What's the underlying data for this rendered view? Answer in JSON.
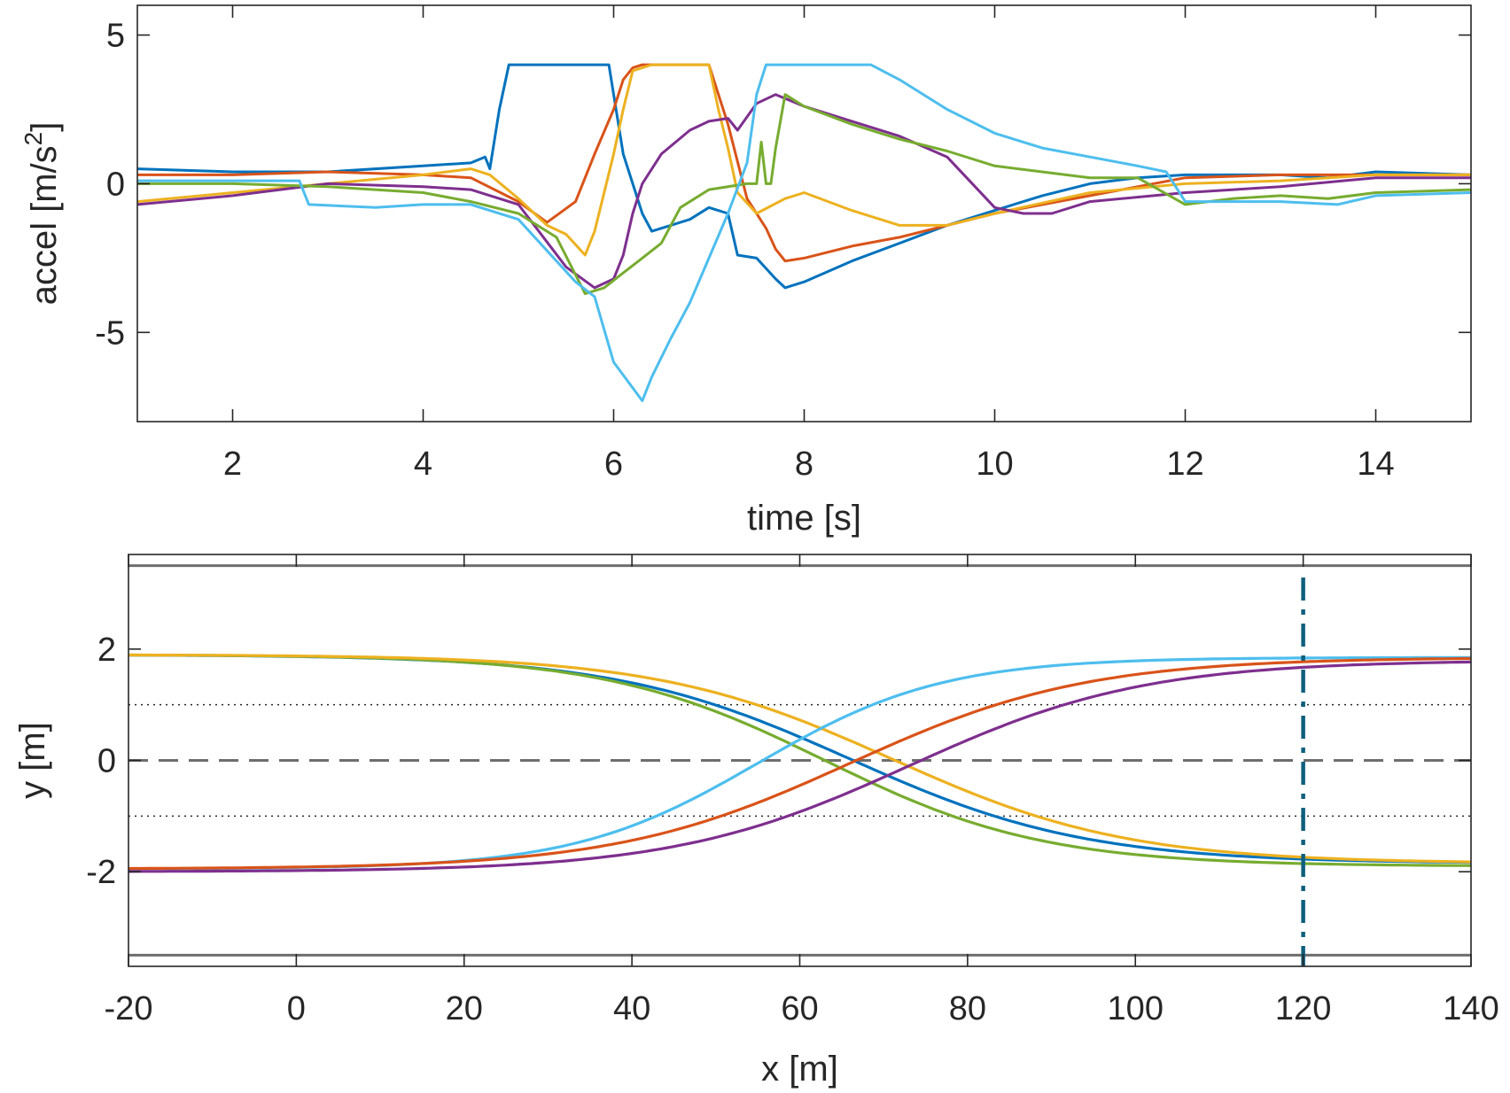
{
  "chart_data": [
    {
      "type": "line",
      "title": "",
      "xlabel": "time [s]",
      "ylabel": "accel [m/s",
      "ylabel_sup": "2",
      "ylabel_end": "]",
      "xlim": [
        1,
        15
      ],
      "ylim": [
        -8,
        6
      ],
      "xticks": [
        2,
        4,
        6,
        8,
        10,
        12,
        14
      ],
      "xtick_labels": [
        "2",
        "4",
        "6",
        "8",
        "10",
        "12",
        "14"
      ],
      "yticks": [
        -5,
        0,
        5
      ],
      "ytick_labels": [
        "-5",
        "0",
        "5"
      ],
      "series": [
        {
          "name": "blue",
          "color": "#0072BD",
          "x": [
            1,
            2,
            3,
            4,
            4.5,
            4.65,
            4.7,
            4.8,
            4.9,
            5.5,
            5.95,
            6.1,
            6.3,
            6.4,
            6.6,
            6.8,
            7.0,
            7.2,
            7.3,
            7.5,
            7.7,
            7.8,
            8.0,
            8.5,
            9.0,
            9.5,
            10.0,
            10.5,
            11.0,
            11.5,
            12.0,
            13.0,
            13.5,
            14.0,
            15.0
          ],
          "y": [
            0.5,
            0.4,
            0.4,
            0.6,
            0.7,
            0.9,
            0.5,
            2.5,
            4.0,
            4.0,
            4.0,
            1.0,
            -1.0,
            -1.6,
            -1.4,
            -1.2,
            -0.8,
            -1.0,
            -2.4,
            -2.5,
            -3.2,
            -3.5,
            -3.3,
            -2.6,
            -2.0,
            -1.4,
            -0.9,
            -0.4,
            0.0,
            0.2,
            0.3,
            0.3,
            0.2,
            0.4,
            0.3
          ]
        },
        {
          "name": "orange",
          "color": "#D95319",
          "x": [
            1,
            2,
            3,
            4,
            4.5,
            5.0,
            5.3,
            5.6,
            5.8,
            6.0,
            6.1,
            6.2,
            6.3,
            6.5,
            7.0,
            7.2,
            7.4,
            7.6,
            7.7,
            7.8,
            8.0,
            8.5,
            9.0,
            10.0,
            11.0,
            12.0,
            13.0,
            14.0,
            15.0
          ],
          "y": [
            0.3,
            0.3,
            0.4,
            0.3,
            0.2,
            -0.6,
            -1.3,
            -0.6,
            1.0,
            2.5,
            3.5,
            3.9,
            4.0,
            4.0,
            4.0,
            2.0,
            -0.5,
            -1.5,
            -2.2,
            -2.6,
            -2.5,
            -2.1,
            -1.8,
            -1.0,
            -0.4,
            0.2,
            0.3,
            0.3,
            0.3
          ]
        },
        {
          "name": "yellow",
          "color": "#EDB120",
          "x": [
            1,
            2,
            3,
            4,
            4.5,
            4.7,
            5.0,
            5.3,
            5.5,
            5.7,
            5.8,
            6.0,
            6.1,
            6.2,
            6.4,
            6.6,
            7.0,
            7.1,
            7.2,
            7.3,
            7.5,
            7.8,
            8.0,
            8.5,
            9.0,
            9.5,
            10.0,
            11.0,
            12.0,
            13.0,
            14.0,
            15.0
          ],
          "y": [
            -0.6,
            -0.3,
            0.0,
            0.3,
            0.5,
            0.3,
            -0.5,
            -1.4,
            -1.7,
            -2.4,
            -1.6,
            1.0,
            2.5,
            3.8,
            4.0,
            4.0,
            4.0,
            2.5,
            1.2,
            -0.3,
            -1.0,
            -0.5,
            -0.3,
            -0.9,
            -1.4,
            -1.4,
            -1.0,
            -0.3,
            0.0,
            0.1,
            0.3,
            0.3
          ]
        },
        {
          "name": "purple",
          "color": "#7E2F8E",
          "x": [
            1,
            2,
            3,
            4,
            4.5,
            5.0,
            5.5,
            5.8,
            6.0,
            6.1,
            6.2,
            6.3,
            6.5,
            6.8,
            7.0,
            7.2,
            7.3,
            7.5,
            7.7,
            8.0,
            8.5,
            9.0,
            9.5,
            10.0,
            10.3,
            10.6,
            11.0,
            12.0,
            13.0,
            14.0,
            15.0
          ],
          "y": [
            -0.7,
            -0.4,
            0.0,
            -0.1,
            -0.2,
            -0.7,
            -2.8,
            -3.5,
            -3.2,
            -2.4,
            -1.0,
            0.0,
            1.0,
            1.8,
            2.1,
            2.2,
            1.8,
            2.7,
            3.0,
            2.6,
            2.1,
            1.6,
            0.9,
            -0.8,
            -1.0,
            -1.0,
            -0.6,
            -0.3,
            -0.1,
            0.2,
            0.2
          ]
        },
        {
          "name": "green",
          "color": "#77AC30",
          "x": [
            1,
            2,
            3,
            4,
            4.5,
            5.0,
            5.4,
            5.7,
            5.9,
            6.1,
            6.3,
            6.5,
            6.7,
            7.0,
            7.4,
            7.5,
            7.55,
            7.6,
            7.65,
            7.7,
            7.8,
            8.0,
            8.5,
            9.0,
            9.5,
            10.0,
            11.0,
            11.5,
            12.0,
            12.5,
            13.0,
            13.5,
            14.0,
            15.0
          ],
          "y": [
            0.0,
            0.0,
            -0.1,
            -0.3,
            -0.6,
            -1.0,
            -1.8,
            -3.7,
            -3.5,
            -3.0,
            -2.5,
            -2.0,
            -0.8,
            -0.2,
            0.0,
            0.0,
            1.4,
            0.0,
            0.0,
            1.2,
            3.0,
            2.6,
            2.0,
            1.5,
            1.1,
            0.6,
            0.2,
            0.2,
            -0.7,
            -0.5,
            -0.4,
            -0.5,
            -0.3,
            -0.2
          ]
        },
        {
          "name": "lightblue",
          "color": "#4DBEEE",
          "x": [
            1,
            2,
            2.7,
            2.8,
            3.5,
            4.0,
            4.5,
            5.0,
            5.4,
            5.6,
            5.8,
            6.0,
            6.3,
            6.4,
            6.6,
            6.8,
            7.0,
            7.2,
            7.4,
            7.5,
            7.6,
            8.0,
            8.5,
            8.7,
            9.0,
            9.5,
            10.0,
            10.5,
            11.0,
            11.5,
            11.8,
            12.0,
            13.0,
            13.6,
            14.0,
            15.0
          ],
          "y": [
            0.1,
            0.1,
            0.1,
            -0.7,
            -0.8,
            -0.7,
            -0.7,
            -1.2,
            -2.6,
            -3.3,
            -3.8,
            -6.0,
            -7.3,
            -6.5,
            -5.2,
            -4.0,
            -2.5,
            -1.0,
            0.7,
            3.0,
            4.0,
            4.0,
            4.0,
            4.0,
            3.5,
            2.5,
            1.7,
            1.2,
            0.9,
            0.6,
            0.4,
            -0.6,
            -0.6,
            -0.7,
            -0.4,
            -0.3
          ]
        }
      ]
    },
    {
      "type": "line",
      "title": "",
      "xlabel": "x [m]",
      "ylabel": "y [m]",
      "xlim": [
        -20,
        140
      ],
      "ylim": [
        -3.7,
        3.7
      ],
      "xticks": [
        -20,
        0,
        20,
        40,
        60,
        80,
        100,
        120,
        140
      ],
      "xtick_labels": [
        "-20",
        "0",
        "20",
        "40",
        "60",
        "80",
        "100",
        "120",
        "140"
      ],
      "yticks": [
        -2,
        0,
        2
      ],
      "ytick_labels": [
        "-2",
        "0",
        "2"
      ],
      "reference_lines": {
        "road_edges": [
          3.5,
          -3.5
        ],
        "center_dashed": 0,
        "lane_dotted": [
          1,
          -1
        ],
        "vertical_dashdot_x": 120,
        "vertical_color": "#0E5F7D"
      },
      "series": [
        {
          "name": "blue",
          "color": "#0072BD",
          "start": 1.9,
          "end": -1.85,
          "center": 66,
          "width": 14
        },
        {
          "name": "green",
          "color": "#77AC30",
          "start": 1.9,
          "end": -1.9,
          "center": 63,
          "width": 13
        },
        {
          "name": "yellow",
          "color": "#EDB120",
          "start": 1.9,
          "end": -1.85,
          "center": 71,
          "width": 14
        },
        {
          "name": "lightblue",
          "color": "#4DBEEE",
          "start": -1.95,
          "end": 1.85,
          "center": 55,
          "width": 11
        },
        {
          "name": "orange",
          "color": "#D95319",
          "start": -1.95,
          "end": 1.85,
          "center": 66,
          "width": 14
        },
        {
          "name": "purple",
          "color": "#7E2F8E",
          "start": -2.0,
          "end": 1.8,
          "center": 73,
          "width": 14
        }
      ]
    }
  ]
}
